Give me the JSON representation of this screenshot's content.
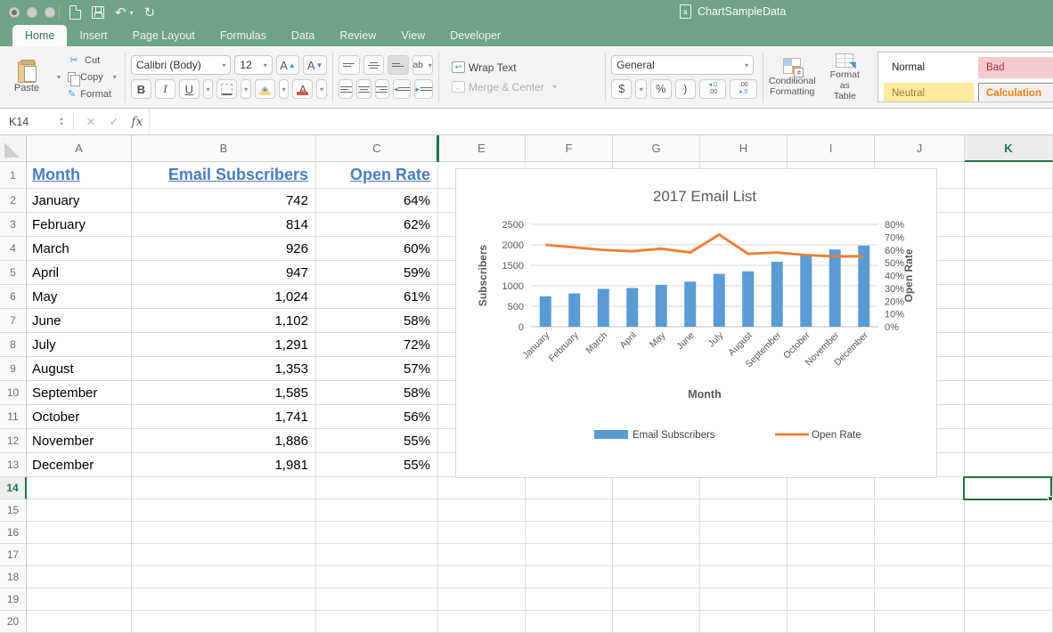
{
  "window": {
    "title": "ChartSampleData"
  },
  "tabs": {
    "active": "Home",
    "items": [
      "Home",
      "Insert",
      "Page Layout",
      "Formulas",
      "Data",
      "Review",
      "View",
      "Developer"
    ]
  },
  "ribbon": {
    "clipboard": {
      "paste": "Paste",
      "cut": "Cut",
      "copy": "Copy",
      "format": "Format"
    },
    "font": {
      "family": "Calibri (Body)",
      "size": "12",
      "grow": "A",
      "shrink": "A",
      "bold": "B",
      "italic": "I",
      "underline": "U",
      "color_letter": "A"
    },
    "alignment": {
      "orientation": "ab"
    },
    "wrap": {
      "wrap_text": "Wrap Text",
      "merge_center": "Merge & Center"
    },
    "number": {
      "format": "General",
      "currency": "$",
      "percent": "%",
      "comma": ")",
      "inc_decimal_top": "◂.0",
      "inc_decimal_bottom": ".00",
      "dec_decimal_top": ".00",
      "dec_decimal_bottom": "▸.0"
    },
    "buttons": {
      "conditional_line1": "Conditional",
      "conditional_line2": "Formatting",
      "format_table_line1": "Format",
      "format_table_line2": "as Table"
    },
    "style_gallery": [
      {
        "label": "Normal",
        "bg": "#ffffff",
        "color": "#1a1a1a",
        "border": "#ffffff"
      },
      {
        "label": "Bad",
        "bg": "#f6c9ce",
        "color": "#9c3a38",
        "border": "#f6c9ce"
      },
      {
        "label": "Neutral",
        "bg": "#feeb9d",
        "color": "#9d7b38",
        "border": "#feeb9d"
      },
      {
        "label": "Calculation",
        "bg": "#f2f2f2",
        "color": "#f07f0e",
        "border": "#8a8a8a"
      }
    ]
  },
  "formula_bar": {
    "name_box": "K14",
    "cancel": "✕",
    "enter": "✓",
    "fx": "fx"
  },
  "sheet": {
    "columns": [
      "A",
      "B",
      "C",
      "E",
      "F",
      "G",
      "H",
      "I",
      "J",
      "K"
    ],
    "hidden_column": "D",
    "selected_cell": "K14",
    "selected_column": "K",
    "selected_row": 14,
    "row_count": 20,
    "headers": {
      "month": "Month",
      "subscribers": "Email Subscribers",
      "open_rate": "Open Rate"
    },
    "rows": [
      {
        "month": "January",
        "subscribers": "742",
        "open_rate": "64%"
      },
      {
        "month": "February",
        "subscribers": "814",
        "open_rate": "62%"
      },
      {
        "month": "March",
        "subscribers": "926",
        "open_rate": "60%"
      },
      {
        "month": "April",
        "subscribers": "947",
        "open_rate": "59%"
      },
      {
        "month": "May",
        "subscribers": "1,024",
        "open_rate": "61%"
      },
      {
        "month": "June",
        "subscribers": "1,102",
        "open_rate": "58%"
      },
      {
        "month": "July",
        "subscribers": "1,291",
        "open_rate": "72%"
      },
      {
        "month": "August",
        "subscribers": "1,353",
        "open_rate": "57%"
      },
      {
        "month": "September",
        "subscribers": "1,585",
        "open_rate": "58%"
      },
      {
        "month": "October",
        "subscribers": "1,741",
        "open_rate": "56%"
      },
      {
        "month": "November",
        "subscribers": "1,886",
        "open_rate": "55%"
      },
      {
        "month": "December",
        "subscribers": "1,981",
        "open_rate": "55%"
      }
    ]
  },
  "chart_data": {
    "type": "bar",
    "combo": true,
    "title": "2017 Email List",
    "categories": [
      "January",
      "February",
      "March",
      "April",
      "May",
      "June",
      "July",
      "August",
      "September",
      "October",
      "November",
      "December"
    ],
    "series": [
      {
        "name": "Email Subscribers",
        "type": "bar",
        "axis": "left",
        "color": "#5B9BD5",
        "values": [
          742,
          814,
          926,
          947,
          1024,
          1102,
          1291,
          1353,
          1585,
          1741,
          1886,
          1981
        ]
      },
      {
        "name": "Open Rate",
        "type": "line",
        "axis": "right",
        "color": "#ED7D31",
        "values": [
          64,
          62,
          60,
          59,
          61,
          58,
          72,
          57,
          58,
          56,
          55,
          55
        ]
      }
    ],
    "left_axis": {
      "title": "Subscribers",
      "min": 0,
      "max": 2500,
      "step": 500,
      "suffix": ""
    },
    "right_axis": {
      "title": "Open Rate",
      "min": 0,
      "max": 80,
      "step": 10,
      "suffix": "%"
    },
    "xlabel": "Month",
    "legend_position": "bottom",
    "grid": true
  },
  "colors": {
    "accent_green": "#217346",
    "titlebar_green": "#6FA287",
    "bar_blue": "#5B9BD5",
    "line_orange": "#ED7D31",
    "header_link_blue": "#4A7EBD",
    "chart_text": "#595959"
  }
}
